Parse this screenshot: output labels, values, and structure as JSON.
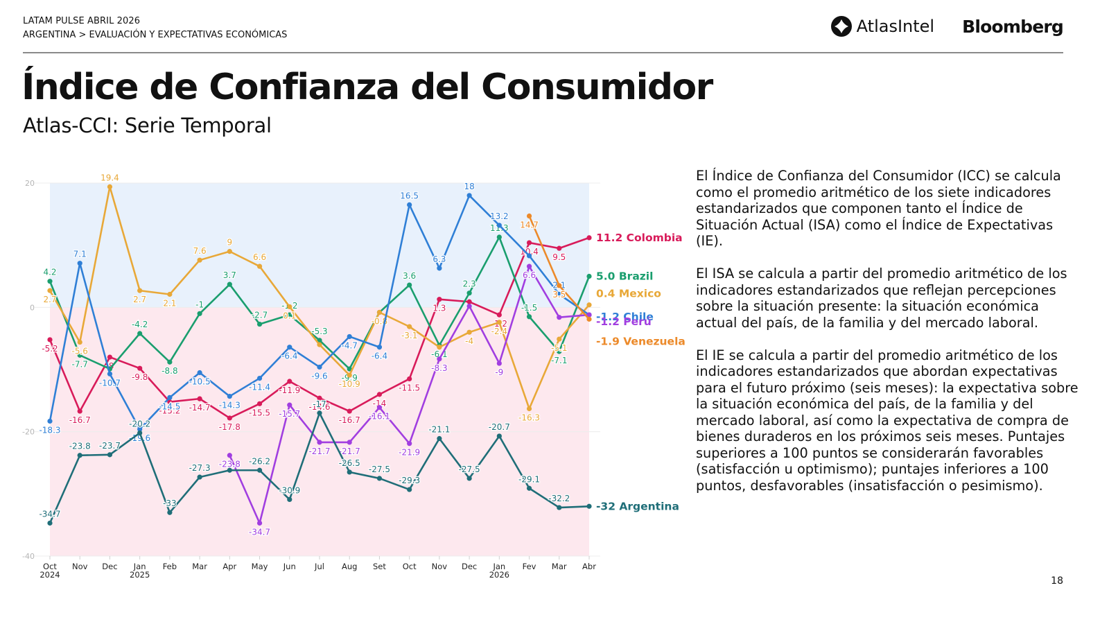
{
  "header": {
    "report": "LATAM PULSE ABRIL 2026",
    "breadcrumb": "ARGENTINA > EVALUACIÓN Y EXPECTATIVAS ECONÓMICAS",
    "logo_atlas": "AtlasIntel",
    "logo_bloomberg": "Bloomberg",
    "logo_atlas_icon": "atlasintel-logo-icon"
  },
  "title": "Índice de Confianza del Consumidor",
  "subtitle": "Atlas-CCI: Serie Temporal",
  "description": [
    "El Índice de Confianza del Consumidor (ICC) se calcula como el promedio aritmético de los siete indicadores estandarizados que componen tanto el Índice de Situación Actual (ISA) como el Índice de Expectativas (IE).",
    "El ISA se calcula a partir del promedio aritmético de los indicadores estandarizados que reflejan percepciones sobre la situación presente: la situación económica actual del país, de la familia y del mercado laboral.",
    "El IE se calcula a partir del promedio aritmético de los indicadores estandarizados que abordan expectativas para el futuro próximo (seis meses): la expectativa sobre la situación económica del país, de la familia y del mercado laboral, así como la expectativa de compra de bienes duraderos en los próximos seis meses. Puntajes superiores a 100 puntos se considerarán favorables (satisfacción u optimismo); puntajes inferiores a 100 puntos, desfavorables (insatisfacción o pesimismo)."
  ],
  "page_number": "18",
  "chart_data": {
    "type": "line",
    "title": "Atlas-CCI: Serie Temporal",
    "xlabel": "",
    "ylabel": "",
    "ylim": [
      -40,
      20
    ],
    "yticks": [
      20,
      0,
      -20,
      -40
    ],
    "grid": true,
    "background_bands": [
      {
        "from": 0,
        "to": 20,
        "color": "#e8f1fc"
      },
      {
        "from": -40,
        "to": 0,
        "color": "#fde8ee"
      }
    ],
    "categories": [
      "Oct",
      "Nov",
      "Dec",
      "Jan",
      "Feb",
      "Mar",
      "Apr",
      "May",
      "Jun",
      "Jul",
      "Aug",
      "Set",
      "Oct",
      "Nov",
      "Dec",
      "Jan",
      "Fev",
      "Mar",
      "Abr"
    ],
    "category_years": {
      "0": "2024",
      "3": "2025",
      "15": "2026"
    },
    "legend_placement": "right (end-of-line labels)",
    "series": [
      {
        "name": "Colombia",
        "color": "#d81b5a",
        "end_label": "11.2",
        "values": [
          -5.2,
          -16.7,
          -8,
          -9.8,
          -15.2,
          -14.7,
          -17.8,
          -15.5,
          -11.9,
          -14.6,
          -16.7,
          -14,
          -11.5,
          1.3,
          0.9,
          -1.2,
          10.4,
          9.5,
          11.2
        ],
        "labels": [
          "-5.2",
          "-16.7",
          "-8",
          "-9.8",
          "-15.2",
          "-14.7",
          "-17.8",
          "-15.5",
          "-11.9",
          "-14.6",
          "-16.7",
          "-14",
          "-11.5",
          "1.3",
          "",
          "-1.2",
          "10.4",
          "9.5",
          ""
        ]
      },
      {
        "name": "Brazil",
        "color": "#1a9e6e",
        "end_label": "5.0",
        "values": [
          4.2,
          -7.7,
          -9.9,
          -4.2,
          -8.8,
          -1,
          3.7,
          -2.7,
          -1.2,
          -5.3,
          -9.9,
          -0.8,
          3.6,
          -6.1,
          2.3,
          11.3,
          -1.5,
          -7.1,
          5.0
        ],
        "labels": [
          "4.2",
          "-7.7",
          "",
          "-4.2",
          "-8.8",
          "-1",
          "3.7",
          "-2.7",
          "-1.2",
          "-5.3",
          "-9.9",
          "",
          "3.6",
          "-6.1",
          "2.3",
          "11.3",
          "-1.5",
          "-7.1",
          ""
        ]
      },
      {
        "name": "Mexico",
        "color": "#e8a838",
        "end_label": "0.4",
        "values": [
          2.7,
          -5.6,
          19.4,
          2.7,
          2.1,
          7.6,
          9,
          6.6,
          0.1,
          -6,
          -10.9,
          -0.8,
          -3.1,
          -6.4,
          -4,
          -2.4,
          -16.3,
          -5.1,
          0.4
        ],
        "labels": [
          "2.7",
          "-5.6",
          "19.4",
          "2.7",
          "2.1",
          "7.6",
          "9",
          "6.6",
          "0.1",
          "",
          "-10.9",
          "-0.8",
          "-3.1",
          "",
          "-4",
          "-2.4",
          "-16.3",
          "-5.1",
          ""
        ]
      },
      {
        "name": "Chile",
        "color": "#2f7fd6",
        "end_label": "-1.2",
        "values": [
          -18.3,
          7.1,
          -10.7,
          -19.6,
          -14.5,
          -10.5,
          -14.3,
          -11.4,
          -6.4,
          -9.6,
          -4.7,
          -6.4,
          16.5,
          6.3,
          18,
          13.2,
          8.3,
          2.1,
          -1.2
        ],
        "labels": [
          "-18.3",
          "7.1",
          "-10.7",
          "-19.6",
          "-14.5",
          "-10.5",
          "-14.3",
          "-11.4",
          "-6.4",
          "-9.6",
          "-4.7",
          "-6.4",
          "16.5",
          "6.3",
          "18",
          "13.2",
          "",
          "2.1",
          ""
        ]
      },
      {
        "name": "Perú",
        "color": "#a13ee0",
        "end_label": "-1.2",
        "values": [
          null,
          null,
          null,
          null,
          null,
          null,
          -23.8,
          -34.7,
          -15.7,
          -21.7,
          -21.7,
          -16.1,
          -21.9,
          -8.3,
          0.2,
          -9,
          6.6,
          -1.6,
          -1.2
        ],
        "labels": [
          "",
          "",
          "",
          "",
          "",
          "",
          "-23.8",
          "-34.7",
          "-15.7",
          "-21.7",
          "-21.7",
          "-16.1",
          "-21.9",
          "-8.3",
          "",
          "-9",
          "6.6",
          "",
          ""
        ]
      },
      {
        "name": "Venezuela",
        "color": "#ec8a2a",
        "end_label": "-1.9",
        "values": [
          null,
          null,
          null,
          null,
          null,
          null,
          null,
          null,
          null,
          null,
          null,
          null,
          null,
          null,
          null,
          null,
          14.7,
          3.5,
          -1.9
        ],
        "labels": [
          "",
          "",
          "",
          "",
          "",
          "",
          "",
          "",
          "",
          "",
          "",
          "",
          "",
          "",
          "",
          "",
          "14.7",
          "3.5",
          ""
        ]
      },
      {
        "name": "Argentina",
        "color": "#1f6e78",
        "end_label": "-32",
        "values": [
          -34.7,
          -23.8,
          -23.7,
          -20.2,
          -33,
          -27.3,
          -26.2,
          -26.2,
          -30.9,
          -17,
          -26.5,
          -27.5,
          -29.3,
          -21.1,
          -27.5,
          -20.7,
          -29.1,
          -32.2,
          -32
        ],
        "labels": [
          "-34.7",
          "-23.8",
          "-23.7",
          "-20.2",
          "-33",
          "-27.3",
          "",
          "-26.2",
          "-30.9",
          "-17",
          "-26.5",
          "-27.5",
          "-29.3",
          "-21.1",
          "-27.5",
          "-20.7",
          "-29.1",
          "-32.2",
          ""
        ]
      }
    ]
  }
}
